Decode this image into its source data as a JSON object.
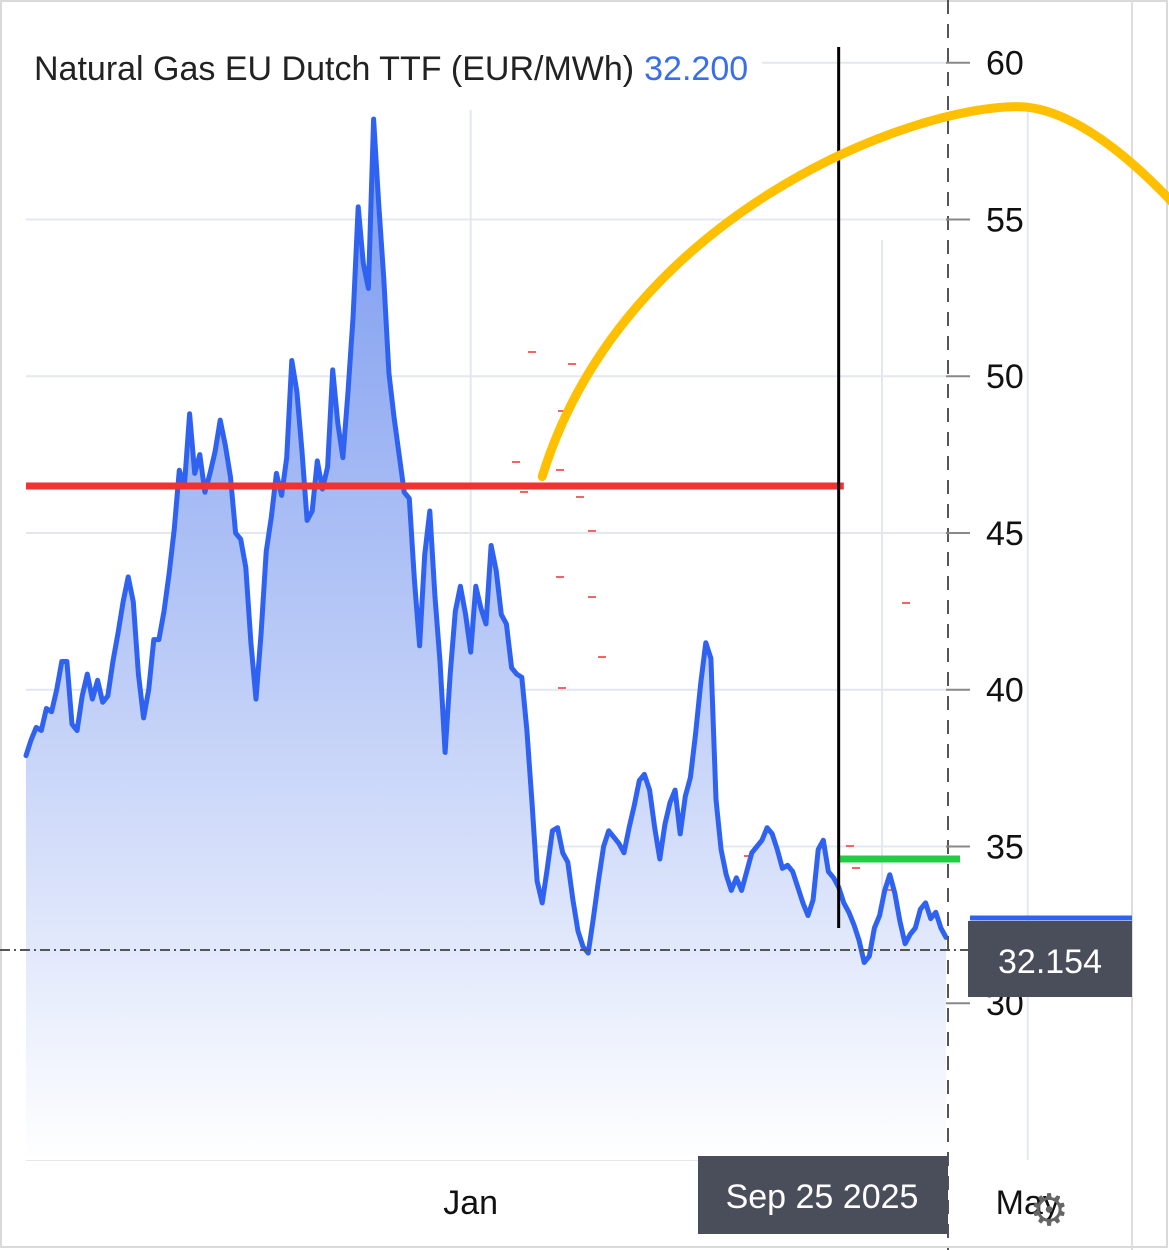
{
  "chart_data": {
    "type": "area",
    "title": "Natural Gas EU Dutch TTF (EUR/MWh)",
    "current_value": "32.200",
    "last_price_label": "32.154",
    "crosshair_date_label": "Sep 25 2025",
    "xlabel": "",
    "ylabel": "",
    "ylim": [
      25,
      62
    ],
    "x_ticks": [
      {
        "label": "Jan",
        "index": 87
      },
      {
        "label": "May",
        "index": 196
      }
    ],
    "y_ticks": [
      30,
      35,
      40,
      45,
      50,
      55,
      60
    ],
    "grid": true,
    "series": [
      {
        "name": "Natural Gas EU Dutch TTF",
        "values": [
          37.9,
          38.4,
          38.8,
          38.7,
          39.4,
          39.3,
          40.0,
          40.9,
          40.9,
          38.9,
          38.7,
          39.8,
          40.5,
          39.7,
          40.3,
          39.6,
          39.8,
          40.9,
          41.8,
          42.8,
          43.6,
          42.8,
          40.5,
          39.1,
          40.0,
          41.6,
          41.6,
          42.5,
          43.7,
          45.1,
          47.0,
          46.5,
          48.8,
          46.9,
          47.5,
          46.3,
          46.9,
          47.6,
          48.6,
          47.8,
          46.8,
          45.0,
          44.8,
          43.9,
          41.5,
          39.7,
          41.8,
          44.4,
          45.5,
          46.9,
          46.2,
          47.4,
          50.5,
          49.5,
          47.6,
          45.4,
          45.7,
          47.3,
          46.4,
          47.1,
          50.2,
          48.5,
          47.4,
          49.5,
          51.9,
          55.4,
          53.6,
          52.8,
          58.2,
          55.5,
          53.1,
          50.1,
          48.7,
          47.5,
          46.3,
          46.1,
          43.5,
          41.4,
          44.3,
          45.7,
          43.0,
          40.9,
          38.0,
          40.5,
          42.5,
          43.3,
          42.4,
          41.2,
          43.3,
          42.6,
          42.1,
          44.6,
          43.8,
          42.4,
          42.1,
          40.7,
          40.5,
          40.4,
          38.7,
          36.4,
          33.9,
          33.2,
          34.3,
          35.5,
          35.6,
          34.8,
          34.5,
          33.3,
          32.3,
          31.8,
          31.6,
          32.7,
          33.9,
          35.0,
          35.5,
          35.3,
          35.1,
          34.8,
          35.6,
          36.3,
          37.1,
          37.3,
          36.8,
          35.6,
          34.6,
          35.7,
          36.4,
          36.8,
          35.4,
          36.6,
          37.2,
          38.6,
          40.2,
          41.5,
          41.0,
          36.5,
          34.9,
          34.1,
          33.6,
          34.0,
          33.6,
          34.2,
          34.8,
          35.0,
          35.2,
          35.6,
          35.4,
          34.9,
          34.3,
          34.4,
          34.2,
          33.7,
          33.2,
          32.8,
          33.3,
          34.9,
          35.2,
          34.2,
          34.0,
          33.7,
          33.2,
          32.9,
          32.5,
          32.0,
          31.3,
          31.5,
          32.4,
          32.8,
          33.6,
          34.1,
          33.5,
          32.6,
          31.9,
          32.2,
          32.4,
          33.0,
          33.2,
          32.7,
          32.9,
          32.4,
          32.1
        ],
        "color": "#2f62f0"
      }
    ],
    "annotations": [
      {
        "type": "horizontal-line",
        "color": "#ee3333",
        "value": 46.5,
        "from_index": 0,
        "to_index": 160
      },
      {
        "type": "horizontal-line",
        "color": "#22cc44",
        "value": 34.6,
        "from_index": 159,
        "to_index": 300
      },
      {
        "type": "vertical-line",
        "color": "#000000",
        "index": 159,
        "from_value": 32.4,
        "to_value": 60.5
      },
      {
        "type": "curved-arrow",
        "color": "#ffc000",
        "from": {
          "index": 101,
          "value": 46.8
        },
        "peak": {
          "index": 194,
          "value": 58.6
        },
        "to": {
          "index": 281,
          "value": 35.1
        }
      }
    ]
  },
  "colors": {
    "series_line": "#2f62f0",
    "area_fill_top": "#6f91ee",
    "area_fill_bottom": "#ffffff",
    "grid": "#e3e8f0",
    "axis_text": "#111111",
    "title_value": "#3a6ee8",
    "label_box": "#4a4e5a",
    "label_text": "#ffffff",
    "gear": "#666666"
  },
  "icons": {
    "settings": "gear-icon",
    "settings_glyph": "⚙"
  }
}
